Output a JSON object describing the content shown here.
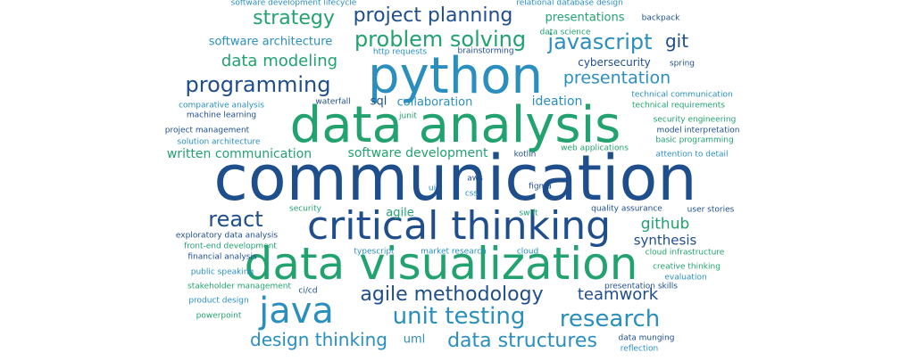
{
  "palette": {
    "navy": "#1f4e8c",
    "green": "#22a26f",
    "teal": "#2a8fbe",
    "sky": "#34a5c4"
  },
  "words": [
    {
      "text": "communication",
      "color": "#1f4e8c"
    },
    {
      "text": "data analysis",
      "color": "#22a26f"
    },
    {
      "text": "python",
      "color": "#2a8fbe"
    },
    {
      "text": "data visualization",
      "color": "#22a26f"
    },
    {
      "text": "critical thinking",
      "color": "#1f4e8c"
    },
    {
      "text": "java",
      "color": "#2a8fbe"
    },
    {
      "text": "unit testing",
      "color": "#2a8fbe"
    },
    {
      "text": "research",
      "color": "#2a8fbe"
    },
    {
      "text": "agile methodology",
      "color": "#1f4e8c"
    },
    {
      "text": "problem solving",
      "color": "#22a26f"
    },
    {
      "text": "programming",
      "color": "#1f4e8c"
    },
    {
      "text": "react",
      "color": "#1f4e8c"
    },
    {
      "text": "javascript",
      "color": "#2a8fbe"
    },
    {
      "text": "data structures",
      "color": "#2a8fbe"
    },
    {
      "text": "design thinking",
      "color": "#2a8fbe"
    },
    {
      "text": "strategy",
      "color": "#22a26f"
    },
    {
      "text": "project planning",
      "color": "#1f4e8c"
    },
    {
      "text": "presentation",
      "color": "#2a8fbe"
    },
    {
      "text": "data modeling",
      "color": "#22a26f"
    },
    {
      "text": "teamwork",
      "color": "#1f4e8c"
    },
    {
      "text": "git",
      "color": "#1f4e8c"
    },
    {
      "text": "github",
      "color": "#22a26f"
    },
    {
      "text": "synthesis",
      "color": "#1f4e8c"
    },
    {
      "text": "software development",
      "color": "#22a26f"
    },
    {
      "text": "written communication",
      "color": "#22a26f"
    },
    {
      "text": "collaboration",
      "color": "#2a8fbe"
    },
    {
      "text": "software architecture",
      "color": "#2a8fbe"
    },
    {
      "text": "ideation",
      "color": "#2a8fbe"
    },
    {
      "text": "presentations",
      "color": "#22a26f"
    },
    {
      "text": "cybersecurity",
      "color": "#1f4e8c"
    },
    {
      "text": "agile",
      "color": "#22a26f"
    },
    {
      "text": "sql",
      "color": "#1f4e8c"
    },
    {
      "text": "uml",
      "color": "#2a8fbe"
    },
    {
      "text": "software development lifecycle",
      "color": "#2a8fbe"
    },
    {
      "text": "relational database design",
      "color": "#2a8fbe"
    },
    {
      "text": "backpack",
      "color": "#1f4e8c"
    },
    {
      "text": "data science",
      "color": "#22a26f"
    },
    {
      "text": "http requests",
      "color": "#2a8fbe"
    },
    {
      "text": "brainstorming",
      "color": "#1f4e8c"
    },
    {
      "text": "spring",
      "color": "#1f4e8c"
    },
    {
      "text": "technical communication",
      "color": "#2a8fbe"
    },
    {
      "text": "technical requirements",
      "color": "#22a26f"
    },
    {
      "text": "waterfall",
      "color": "#1f4e8c"
    },
    {
      "text": "comparative analysis",
      "color": "#2a8fbe"
    },
    {
      "text": "machine learning",
      "color": "#1f4e8c"
    },
    {
      "text": "junit",
      "color": "#22a26f"
    },
    {
      "text": "security engineering",
      "color": "#22a26f"
    },
    {
      "text": "project management",
      "color": "#1f4e8c"
    },
    {
      "text": "model interpretation",
      "color": "#1f4e8c"
    },
    {
      "text": "solution architecture",
      "color": "#2a8fbe"
    },
    {
      "text": "basic programming",
      "color": "#22a26f"
    },
    {
      "text": "web applications",
      "color": "#22a26f"
    },
    {
      "text": "kotlin",
      "color": "#1f4e8c"
    },
    {
      "text": "attention to detail",
      "color": "#2a8fbe"
    },
    {
      "text": "aws",
      "color": "#1f4e8c"
    },
    {
      "text": "ui",
      "color": "#2a8fbe"
    },
    {
      "text": "css",
      "color": "#2a8fbe"
    },
    {
      "text": "figma",
      "color": "#1f4e8c"
    },
    {
      "text": "security",
      "color": "#22a26f"
    },
    {
      "text": "swift",
      "color": "#22a26f"
    },
    {
      "text": "quality assurance",
      "color": "#1f4e8c"
    },
    {
      "text": "user stories",
      "color": "#1f4e8c"
    },
    {
      "text": "exploratory data analysis",
      "color": "#1f4e8c"
    },
    {
      "text": "front-end development",
      "color": "#22a26f"
    },
    {
      "text": "typescript",
      "color": "#2a8fbe"
    },
    {
      "text": "market research",
      "color": "#2a8fbe"
    },
    {
      "text": "cloud",
      "color": "#2a8fbe"
    },
    {
      "text": "cloud infrastructure",
      "color": "#22a26f"
    },
    {
      "text": "financial analysis",
      "color": "#1f4e8c"
    },
    {
      "text": "creative thinking",
      "color": "#22a26f"
    },
    {
      "text": "public speaking",
      "color": "#2a8fbe"
    },
    {
      "text": "evaluation",
      "color": "#2a8fbe"
    },
    {
      "text": "stakeholder management",
      "color": "#22a26f"
    },
    {
      "text": "ci/cd",
      "color": "#1f4e8c"
    },
    {
      "text": "presentation skills",
      "color": "#1f4e8c"
    },
    {
      "text": "product design",
      "color": "#2a8fbe"
    },
    {
      "text": "powerpoint",
      "color": "#22a26f"
    },
    {
      "text": "data munging",
      "color": "#1f4e8c"
    },
    {
      "text": "reflection",
      "color": "#2a8fbe"
    }
  ]
}
